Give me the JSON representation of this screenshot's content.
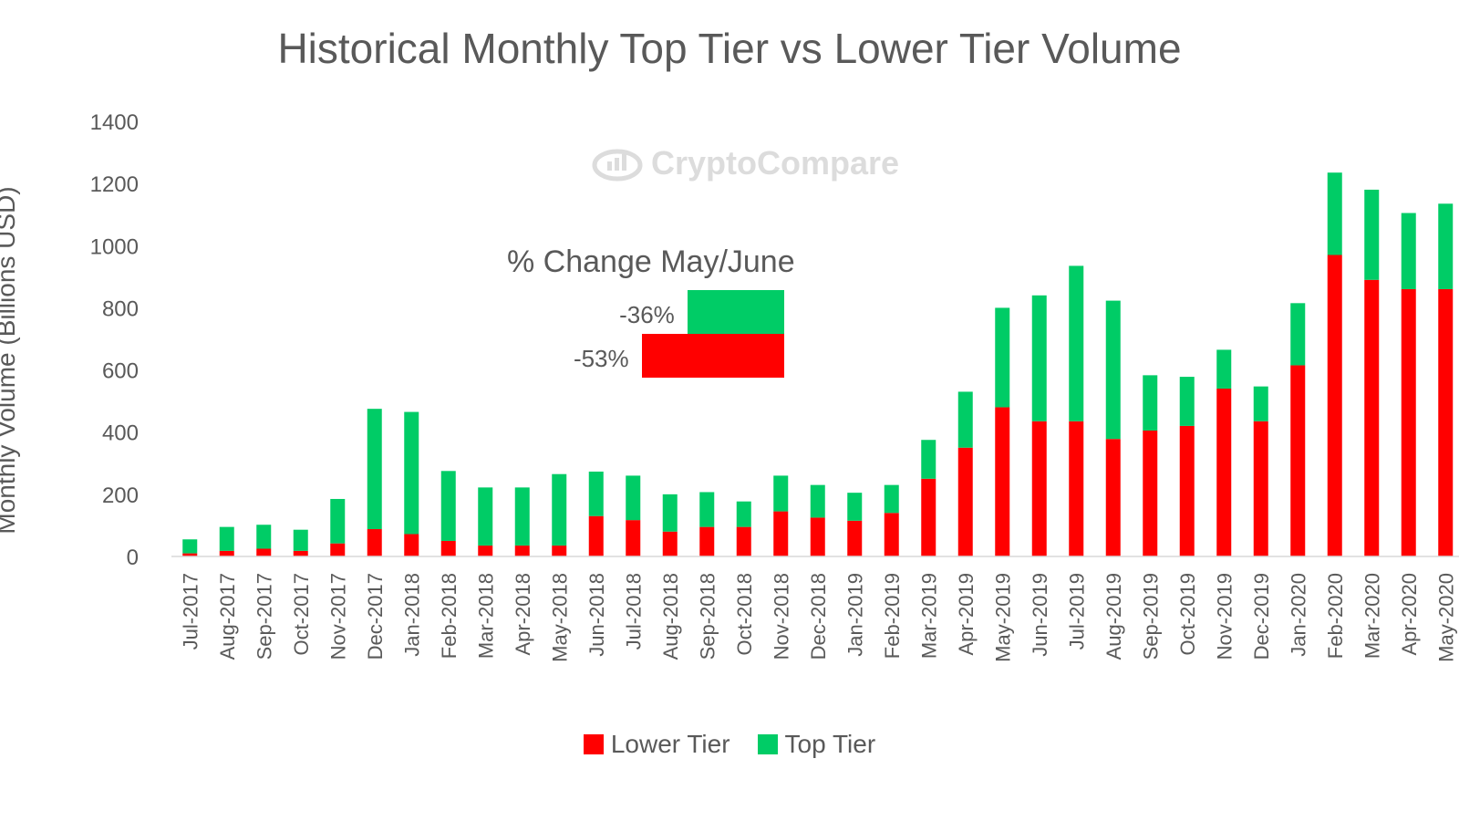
{
  "colors": {
    "lower": "#ff0000",
    "top": "#00cc66",
    "grid": "#d9d9d9",
    "text": "#595959"
  },
  "watermark": {
    "icon": "cryptocompare-logo-icon",
    "text": "CryptoCompare"
  },
  "inset": {
    "title": "% Change May/June",
    "top_tier_label": "-36%",
    "lower_tier_label": "-53%",
    "top_tier_change": -36,
    "lower_tier_change": -53
  },
  "legend": {
    "lower_label": "Lower Tier",
    "top_label": "Top Tier"
  },
  "chart_data": {
    "type": "bar",
    "stacked": true,
    "title": "Historical Monthly Top Tier vs Lower Tier Volume",
    "ylabel": "Monthly Volume (Billions USD)",
    "ylim": [
      0,
      1400
    ],
    "yticks": [
      0,
      200,
      400,
      600,
      800,
      1000,
      1200,
      1400
    ],
    "grid": false,
    "legend_position": "bottom",
    "categories": [
      "Jul-2017",
      "Aug-2017",
      "Sep-2017",
      "Oct-2017",
      "Nov-2017",
      "Dec-2017",
      "Jan-2018",
      "Feb-2018",
      "Mar-2018",
      "Apr-2018",
      "May-2018",
      "Jun-2018",
      "Jul-2018",
      "Aug-2018",
      "Sep-2018",
      "Oct-2018",
      "Nov-2018",
      "Dec-2018",
      "Jan-2019",
      "Feb-2019",
      "Mar-2019",
      "Apr-2019",
      "May-2019",
      "Jun-2019",
      "Jul-2019",
      "Aug-2019",
      "Sep-2019",
      "Oct-2019",
      "Nov-2019",
      "Dec-2019",
      "Jan-2020",
      "Feb-2020",
      "Mar-2020",
      "Apr-2020",
      "May-2020"
    ],
    "series": [
      {
        "name": "Lower Tier",
        "values": [
          10,
          18,
          25,
          18,
          42,
          88,
          72,
          50,
          35,
          35,
          35,
          130,
          117,
          80,
          95,
          95,
          145,
          125,
          115,
          140,
          250,
          350,
          480,
          435,
          435,
          378,
          405,
          420,
          540,
          435,
          615,
          970,
          890,
          860,
          860
        ]
      },
      {
        "name": "Top Tier",
        "values": [
          45,
          77,
          77,
          68,
          143,
          387,
          393,
          225,
          187,
          187,
          230,
          143,
          143,
          120,
          112,
          82,
          115,
          105,
          90,
          90,
          125,
          180,
          320,
          405,
          500,
          445,
          178,
          158,
          125,
          112,
          200,
          265,
          290,
          245,
          275
        ]
      }
    ]
  }
}
